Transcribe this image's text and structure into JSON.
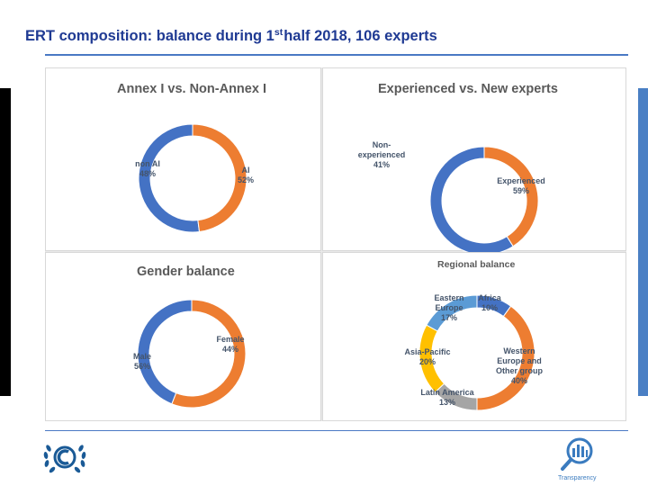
{
  "header": {
    "title_prefix": "ERT composition: balance during 1",
    "title_sup": "st",
    "title_suffix": "half 2018, 106 experts"
  },
  "footer": {
    "logo_text": "Transparency"
  },
  "colors": {
    "blue": "#4472c4",
    "orange": "#ed7d31",
    "light_blue": "#5b9bd5",
    "yellow": "#ffc000",
    "gray": "#a5a5a5",
    "title_blue": "#1f3a93"
  },
  "chart_data": [
    {
      "type": "pie",
      "title": "Annex I vs. Non-Annex I",
      "slices": [
        {
          "name": "AI",
          "value": 52,
          "label": "52%",
          "color": "#4472c4"
        },
        {
          "name": "non AI",
          "value": 48,
          "label": "48%",
          "color": "#ed7d31"
        }
      ]
    },
    {
      "type": "pie",
      "title": "Experienced vs. New experts",
      "slices": [
        {
          "name": "Experienced",
          "value": 59,
          "label": "59%",
          "color": "#4472c4"
        },
        {
          "name": "Non-experienced",
          "value": 41,
          "label": "41%",
          "color": "#ed7d31"
        }
      ]
    },
    {
      "type": "pie",
      "title": "Gender balance",
      "slices": [
        {
          "name": "Female",
          "value": 44,
          "label": "44%",
          "color": "#4472c4"
        },
        {
          "name": "Male",
          "value": 56,
          "label": "56%",
          "color": "#ed7d31"
        }
      ]
    },
    {
      "type": "pie",
      "title": "Regional balance",
      "slices": [
        {
          "name": "Africa",
          "value": 10,
          "label": "10%",
          "color": "#4472c4"
        },
        {
          "name": "Western Europe and Other group",
          "value": 40,
          "label": "40%",
          "color": "#ed7d31"
        },
        {
          "name": "Latin America",
          "value": 13,
          "label": "13%",
          "color": "#a5a5a5"
        },
        {
          "name": "Asia-Pacific",
          "value": 20,
          "label": "20%",
          "color": "#ffc000"
        },
        {
          "name": "Eastern Europe",
          "value": 17,
          "label": "17%",
          "color": "#5b9bd5"
        }
      ]
    }
  ]
}
